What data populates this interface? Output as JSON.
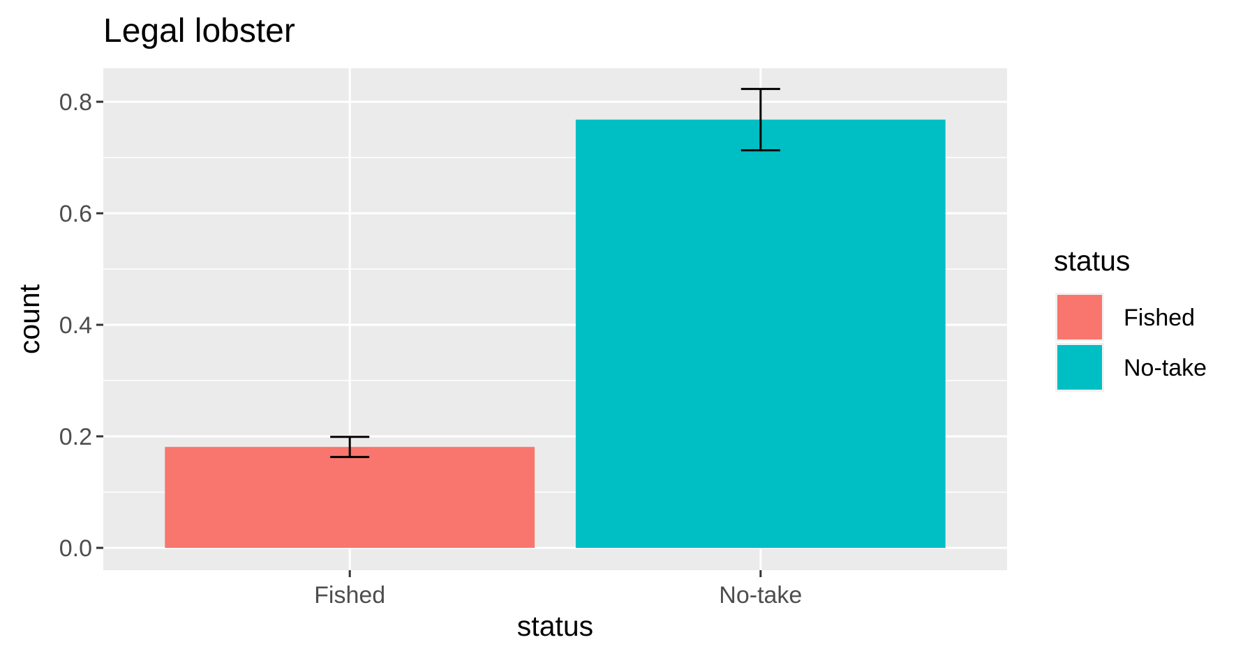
{
  "chart_data": {
    "type": "bar",
    "title": "Legal lobster",
    "xlabel": "status",
    "ylabel": "count",
    "categories": [
      "Fished",
      "No-take"
    ],
    "values": [
      0.181,
      0.768
    ],
    "error_bars": [
      {
        "low": 0.163,
        "high": 0.199
      },
      {
        "low": 0.713,
        "high": 0.823
      }
    ],
    "colors": [
      "#F8766D",
      "#00BFC4"
    ],
    "ylim": [
      -0.04,
      0.86
    ],
    "yticks": [
      0.0,
      0.2,
      0.4,
      0.6,
      0.8
    ],
    "ytick_labels": [
      "0.0",
      "0.2",
      "0.4",
      "0.6",
      "0.8"
    ],
    "grid": true,
    "panel_background": "#EBEBEB",
    "legend": {
      "title": "status",
      "position": "right",
      "entries": [
        "Fished",
        "No-take"
      ]
    }
  }
}
